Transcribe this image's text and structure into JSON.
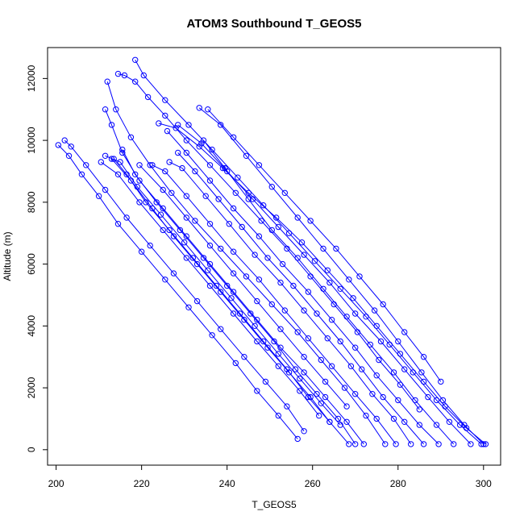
{
  "chart_data": {
    "type": "line",
    "title": "ATOM3 Southbound T_GEOS5",
    "xlabel": "T_GEOS5",
    "ylabel": "Altitude (m)",
    "xlim": [
      198,
      304
    ],
    "ylim": [
      -500,
      13000
    ],
    "xticks": [
      200,
      220,
      240,
      260,
      280,
      300
    ],
    "yticks": [
      0,
      2000,
      4000,
      6000,
      8000,
      10000,
      12000
    ],
    "grid": false,
    "legend": "none",
    "marker": "open-circle",
    "color": "#0000ff",
    "series": [
      {
        "x": [
          300.5,
          296.0,
          291.0,
          286.0,
          280.5,
          275.0,
          269.5,
          263.5,
          257.5,
          251.5,
          245.0,
          239.0,
          233.5,
          228.0,
          224.0
        ],
        "y": [
          180,
          700,
          1400,
          2200,
          3100,
          4000,
          4900,
          5800,
          6700,
          7500,
          8300,
          9100,
          9800,
          10400,
          10550
        ]
      },
      {
        "x": [
          300.0,
          295.5,
          290.5,
          285.5,
          280.0,
          274.5,
          268.5,
          262.5,
          256.5,
          250.5,
          244.5,
          238.5,
          233.5
        ],
        "y": [
          180,
          800,
          1600,
          2500,
          3500,
          4500,
          5500,
          6500,
          7500,
          8500,
          9500,
          10500,
          11050
        ]
      },
      {
        "x": [
          299.5,
          294.5,
          289.0,
          283.5,
          278.0,
          272.5,
          266.5,
          260.5,
          254.5,
          248.5,
          242.5,
          236.5,
          231.0,
          225.5,
          220.5,
          218.5
        ],
        "y": [
          180,
          800,
          1600,
          2500,
          3400,
          4300,
          5200,
          6100,
          7000,
          7900,
          8800,
          9700,
          10500,
          11300,
          12100,
          12600
        ]
      },
      {
        "x": [
          297.0,
          292.0,
          287.0,
          281.5,
          276.0,
          270.0,
          264.0,
          258.0,
          252.0,
          246.0,
          240.0,
          234.0,
          228.5
        ],
        "y": [
          180,
          900,
          1700,
          2600,
          3500,
          4400,
          5400,
          6300,
          7200,
          8100,
          9000,
          9900,
          10500
        ]
      },
      {
        "x": [
          293.0,
          289.0,
          284.0,
          279.0,
          273.5,
          268.0,
          262.5,
          256.5,
          250.5,
          245.0,
          239.5,
          234.5
        ],
        "y": [
          180,
          800,
          1600,
          2500,
          3400,
          4300,
          5200,
          6200,
          7100,
          8100,
          9100,
          10000
        ]
      },
      {
        "x": [
          289.5,
          285.0,
          280.0,
          275.0,
          270.0,
          264.5,
          259.0,
          253.0,
          247.5,
          241.5,
          236.0,
          230.5,
          226.0
        ],
        "y": [
          180,
          800,
          1600,
          2400,
          3300,
          4200,
          5100,
          6000,
          6900,
          7800,
          8700,
          9600,
          10300
        ]
      },
      {
        "x": [
          286.0,
          281.5,
          276.5,
          271.5,
          266.5,
          261.0,
          255.5,
          249.5,
          243.5,
          238.0,
          232.5,
          228.5
        ],
        "y": [
          180,
          900,
          1700,
          2600,
          3500,
          4400,
          5300,
          6200,
          7200,
          8100,
          9000,
          9600
        ]
      },
      {
        "x": [
          283.0,
          279.0,
          274.0,
          269.0,
          263.5,
          258.0,
          252.5,
          246.5,
          240.5,
          235.0,
          229.5,
          226.5
        ],
        "y": [
          180,
          1000,
          1800,
          2700,
          3600,
          4500,
          5400,
          6300,
          7300,
          8200,
          9100,
          9300
        ]
      },
      {
        "x": [
          279.5,
          275.0,
          270.0,
          264.5,
          259.0,
          253.5,
          247.5,
          241.5,
          236.0,
          230.5,
          225.5,
          222.5
        ],
        "y": [
          180,
          1000,
          1800,
          2700,
          3600,
          4500,
          5500,
          6400,
          7300,
          8200,
          9000,
          9200
        ]
      },
      {
        "x": [
          277.0,
          272.5,
          267.5,
          262.0,
          256.5,
          250.5,
          244.5,
          238.5,
          232.5,
          227.0,
          222.0,
          217.5,
          214.0,
          212.0
        ],
        "y": [
          180,
          1100,
          2000,
          2900,
          3800,
          4700,
          5600,
          6500,
          7400,
          8300,
          9200,
          10100,
          11000,
          11900
        ]
      },
      {
        "x": [
          272.0,
          268.0,
          263.0,
          258.0,
          252.5,
          247.0,
          241.5,
          236.0,
          230.5,
          225.0,
          219.5,
          215.5,
          213.0,
          211.5
        ],
        "y": [
          180,
          900,
          1700,
          2500,
          3300,
          4200,
          5100,
          6000,
          6900,
          7800,
          8700,
          9600,
          10500,
          11000
        ]
      },
      {
        "x": [
          270.0,
          266.0,
          261.0,
          256.0,
          251.0,
          245.5,
          240.0,
          234.5,
          229.0,
          223.5,
          218.5,
          215.5
        ],
        "y": [
          180,
          1000,
          1800,
          2600,
          3500,
          4400,
          5300,
          6200,
          7100,
          8000,
          8900,
          9700
        ]
      },
      {
        "x": [
          268.5,
          264.0,
          259.0,
          254.0,
          248.5,
          243.0,
          237.5,
          232.0,
          226.5,
          221.0,
          216.5,
          213.5
        ],
        "y": [
          180,
          900,
          1700,
          2600,
          3500,
          4400,
          5300,
          6200,
          7100,
          8000,
          8900,
          9400
        ]
      },
      {
        "x": [
          266.5,
          262.0,
          257.0,
          252.0,
          246.5,
          241.0,
          235.5,
          230.0,
          224.5,
          219.0,
          215.0,
          211.5
        ],
        "y": [
          800,
          1500,
          2300,
          3100,
          4000,
          4900,
          5800,
          6700,
          7600,
          8500,
          9300,
          9500
        ]
      },
      {
        "x": [
          264.0,
          259.5,
          254.5,
          249.5,
          244.0,
          238.5,
          233.0,
          227.5,
          222.5,
          217.5,
          213.0
        ],
        "y": [
          900,
          1700,
          2500,
          3300,
          4200,
          5100,
          6000,
          6900,
          7800,
          8700,
          9400
        ]
      },
      {
        "x": [
          261.5,
          257.0,
          252.0,
          247.0,
          241.5,
          236.0,
          230.5,
          225.0,
          219.5,
          214.5,
          210.5
        ],
        "y": [
          1100,
          1900,
          2700,
          3500,
          4400,
          5300,
          6200,
          7100,
          8000,
          8900,
          9300
        ]
      },
      {
        "x": [
          258.0,
          254.0,
          249.0,
          244.0,
          238.5,
          233.0,
          227.5,
          222.0,
          216.5,
          211.5,
          207.0,
          203.5,
          202.0
        ],
        "y": [
          600,
          1400,
          2200,
          3000,
          3900,
          4800,
          5700,
          6600,
          7500,
          8400,
          9200,
          9800,
          10000
        ]
      },
      {
        "x": [
          256.5,
          252.0,
          247.0,
          242.0,
          236.5,
          231.0,
          225.5,
          220.0,
          214.5,
          210.0,
          206.0,
          203.0,
          200.5
        ],
        "y": [
          350,
          1100,
          1900,
          2800,
          3700,
          4600,
          5500,
          6400,
          7300,
          8200,
          8900,
          9500,
          9850
        ]
      },
      {
        "x": [
          268.0,
          263.0,
          258.0,
          252.5,
          247.0,
          241.5,
          236.0,
          230.5,
          225.0,
          219.5
        ],
        "y": [
          1400,
          2200,
          3000,
          3900,
          4800,
          5700,
          6600,
          7500,
          8400,
          9200
        ]
      },
      {
        "x": [
          285.0,
          280.5,
          275.5,
          270.5,
          265.0,
          259.5,
          254.0,
          248.0,
          242.0,
          236.0,
          230.5,
          225.5,
          221.5,
          218.5,
          216.0,
          214.5
        ],
        "y": [
          1300,
          2100,
          2900,
          3800,
          4700,
          5600,
          6500,
          7400,
          8300,
          9200,
          10000,
          10800,
          11400,
          11900,
          12100,
          12150
        ]
      },
      {
        "x": [
          290.0,
          286.0,
          281.5,
          276.5,
          271.0,
          265.5,
          259.5,
          253.5,
          247.5,
          241.5,
          235.5
        ],
        "y": [
          2200,
          3000,
          3800,
          4700,
          5600,
          6500,
          7400,
          8300,
          9200,
          10100,
          11000
        ]
      }
    ]
  }
}
